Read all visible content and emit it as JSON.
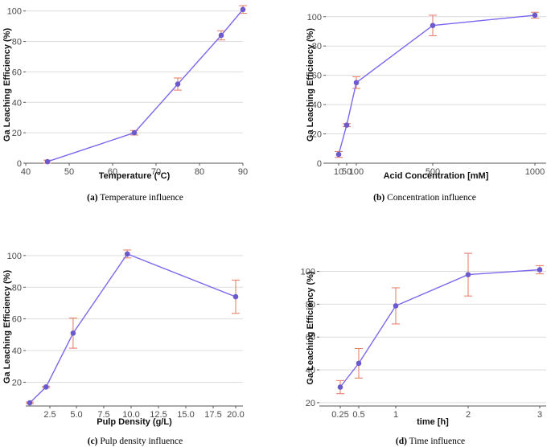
{
  "colors": {
    "line": "#7b68ee",
    "marker": "#6a5acd",
    "error": "#e8836e",
    "grid": "#dcdcdc"
  },
  "chart_data": [
    {
      "id": "a",
      "type": "line",
      "caption_label": "(a)",
      "caption_text": "Temperature influence",
      "xlabel": "Temperature (°C)",
      "ylabel": "Ga Leaching Efficiency (%)",
      "xlim": [
        40,
        90
      ],
      "ylim": [
        0,
        103
      ],
      "xticks": [
        40,
        50,
        60,
        70,
        80,
        90
      ],
      "yticks": [
        0,
        20,
        40,
        60,
        80,
        100
      ],
      "x": [
        45,
        65,
        75,
        85,
        90
      ],
      "y": [
        1,
        20,
        52,
        84,
        101
      ],
      "err": [
        1,
        1.5,
        4,
        3,
        2.5
      ]
    },
    {
      "id": "b",
      "type": "line",
      "caption_label": "(b)",
      "caption_text": "Concentration influence",
      "xlabel": "Acid Concentration [mM]",
      "ylabel": "Ga Leaching Efficiency (%)",
      "xlim": [
        0,
        1050
      ],
      "ylim": [
        0,
        107
      ],
      "xticks": [
        10,
        50,
        100,
        500,
        1000
      ],
      "ytickvalues": [
        0,
        20,
        40,
        60,
        80,
        100
      ],
      "x": [
        10,
        50,
        100,
        500,
        1000
      ],
      "y": [
        6,
        26,
        55,
        94,
        101
      ],
      "err": [
        2,
        1,
        4,
        7,
        2
      ]
    },
    {
      "id": "c",
      "type": "line",
      "caption_label": "(c)",
      "caption_text": "Pulp density influence",
      "xlabel": "Pulp Density (g/L)",
      "ylabel": "Ga Leaching Efficiency (%)",
      "xlim": [
        0.6,
        20.7
      ],
      "ylim": [
        5,
        105
      ],
      "xticks": [
        "2.5",
        "5.0",
        "7.5",
        "10.0",
        "12.5",
        "15.0",
        "17.5",
        "20.0"
      ],
      "yticks": [
        20,
        40,
        60,
        80,
        100
      ],
      "x": [
        1,
        2.5,
        5,
        10,
        20
      ],
      "y": [
        7,
        17,
        51,
        101,
        74
      ],
      "err": [
        0.5,
        0.5,
        9.5,
        2.5,
        10.5
      ]
    },
    {
      "id": "d",
      "type": "line",
      "caption_label": "(d)",
      "caption_text": "Time influence",
      "xlabel": "time [h]",
      "ylabel": "Ga Leaching Efficiency (%)",
      "xlim": [
        0.13,
        3.15
      ],
      "ylim": [
        18,
        113
      ],
      "xticks": [
        "0.25",
        "0.5",
        "1",
        "2",
        "3"
      ],
      "yticks": [
        20,
        40,
        60,
        80,
        100
      ],
      "x": [
        0.25,
        0.5,
        1,
        2,
        3
      ],
      "y": [
        29.5,
        44,
        79,
        98,
        101
      ],
      "err": [
        4,
        9,
        11,
        13,
        2.5
      ]
    }
  ]
}
